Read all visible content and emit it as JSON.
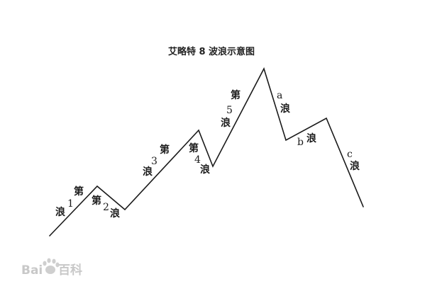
{
  "title": "艾略特 8 波浪示意图",
  "labels": {
    "di": "第",
    "lang": "浪",
    "one": "1",
    "two": "2",
    "three": "3",
    "four": "4",
    "five": "5",
    "a": "a",
    "b": "b",
    "c": "c"
  },
  "watermark": {
    "left": "Bai",
    "right": "百科"
  },
  "colors": {
    "line": "#1a1a1a",
    "watermark": "#c8c8c8"
  }
}
